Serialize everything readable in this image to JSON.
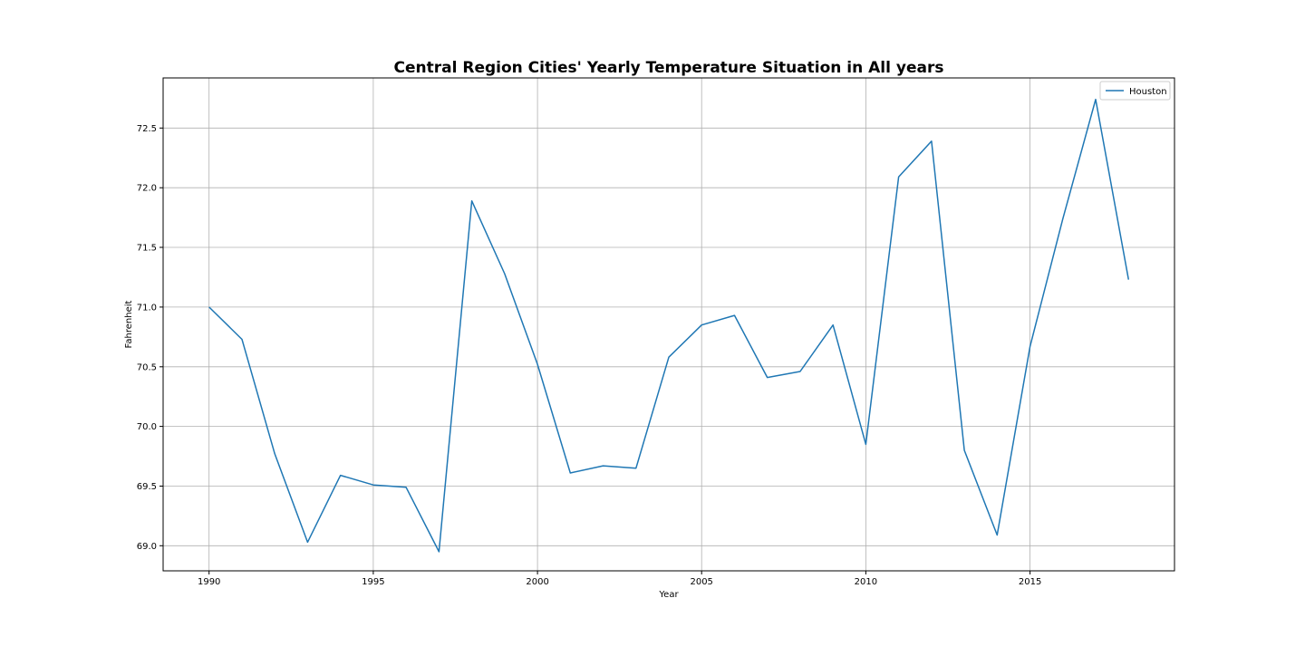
{
  "chart_data": {
    "type": "line",
    "title": "Central Region Cities' Yearly Temperature Situation in All years",
    "xlabel": "Year",
    "ylabel": "Fahrenheit",
    "x": [
      1990,
      1991,
      1992,
      1993,
      1994,
      1995,
      1996,
      1997,
      1998,
      1999,
      2000,
      2001,
      2002,
      2003,
      2004,
      2005,
      2006,
      2007,
      2008,
      2009,
      2010,
      2011,
      2012,
      2013,
      2014,
      2015,
      2016,
      2017,
      2018
    ],
    "series": [
      {
        "name": "Houston",
        "color": "#1f77b4",
        "values": [
          71.0,
          70.73,
          69.77,
          69.03,
          69.59,
          69.51,
          69.49,
          68.95,
          71.89,
          71.28,
          70.52,
          69.61,
          69.67,
          69.65,
          70.58,
          70.85,
          70.93,
          70.41,
          70.46,
          70.85,
          69.85,
          72.09,
          72.39,
          69.8,
          69.09,
          70.67,
          71.74,
          72.74,
          71.23
        ]
      }
    ],
    "xlim": [
      1988.6,
      2019.4
    ],
    "ylim": [
      68.79,
      72.92
    ],
    "xticks": [
      1990,
      1995,
      2000,
      2005,
      2010,
      2015
    ],
    "xtick_labels": [
      "1990",
      "1995",
      "2000",
      "2005",
      "2010",
      "2015"
    ],
    "yticks": [
      69.0,
      69.5,
      70.0,
      70.5,
      71.0,
      71.5,
      72.0,
      72.5
    ],
    "ytick_labels": [
      "69.0",
      "69.5",
      "70.0",
      "70.5",
      "71.0",
      "71.5",
      "72.0",
      "72.5"
    ],
    "grid": true,
    "legend_position": "upper-right"
  }
}
